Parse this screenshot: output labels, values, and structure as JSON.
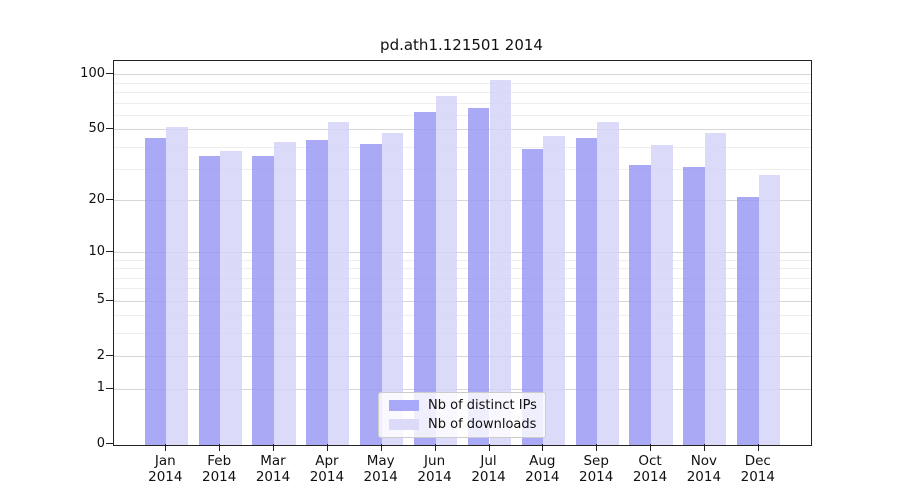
{
  "chart_data": {
    "type": "bar",
    "title": "pd.ath1.121501 2014",
    "months": [
      "Jan",
      "Feb",
      "Mar",
      "Apr",
      "May",
      "Jun",
      "Jul",
      "Aug",
      "Sep",
      "Oct",
      "Nov",
      "Dec"
    ],
    "year": "2014",
    "categories": [
      "Jan 2014",
      "Feb 2014",
      "Mar 2014",
      "Apr 2014",
      "May 2014",
      "Jun 2014",
      "Jul 2014",
      "Aug 2014",
      "Sep 2014",
      "Oct 2014",
      "Nov 2014",
      "Dec 2014"
    ],
    "series": [
      {
        "name": "Nb of distinct IPs",
        "color": "#a9a9f9",
        "fill": "rgba(150,150,244,0.82)",
        "values": [
          45,
          36,
          36,
          44,
          42,
          63,
          66,
          39,
          45,
          32,
          31,
          21
        ]
      },
      {
        "name": "Nb of downloads",
        "color": "#dbdbf9",
        "fill": "rgba(211,211,248,0.82)",
        "values": [
          52,
          38,
          43,
          55,
          48,
          77,
          94,
          46,
          55,
          41,
          48,
          28
        ]
      }
    ],
    "yscale": "log1p",
    "yticks": [
      0,
      1,
      2,
      5,
      10,
      20,
      50,
      100
    ],
    "minor_yticks": [
      3,
      4,
      6,
      7,
      8,
      9,
      30,
      40,
      60,
      70,
      80,
      90
    ],
    "ylim": [
      0,
      118
    ],
    "grid": true,
    "legend_position": "lower center",
    "colors": {
      "grid_major": "#d7d7d7",
      "grid_minor": "#eeeeee",
      "spine": "#222222",
      "text": "#111111"
    }
  }
}
